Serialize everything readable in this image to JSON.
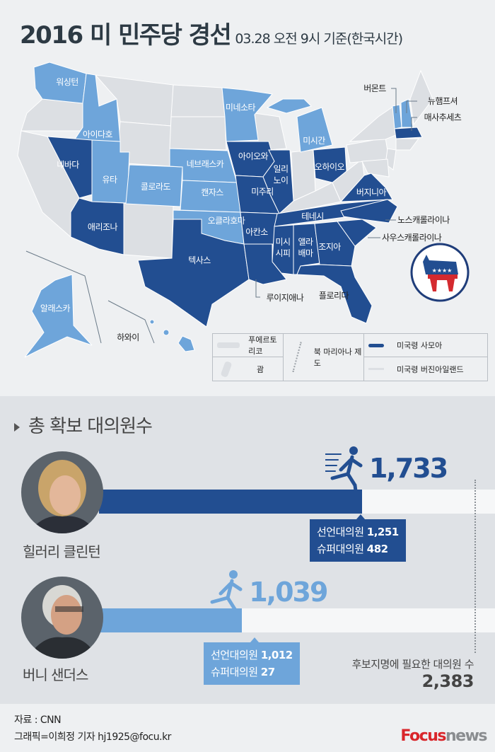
{
  "header": {
    "title": "2016 미 민주당 경선",
    "subtitle": "03.28 오전 9시 기준(한국시간)"
  },
  "colors": {
    "clinton": "#224e91",
    "sanders": "#6ea5da",
    "none": "#dcdfe3"
  },
  "map": {
    "states": [
      {
        "name": "워싱턴",
        "winner": "sanders"
      },
      {
        "name": "아이다호",
        "winner": "sanders"
      },
      {
        "name": "네바다",
        "winner": "clinton"
      },
      {
        "name": "유타",
        "winner": "sanders"
      },
      {
        "name": "애리조나",
        "winner": "clinton"
      },
      {
        "name": "콜로라도",
        "winner": "sanders"
      },
      {
        "name": "네브래스카",
        "winner": "sanders"
      },
      {
        "name": "캔자스",
        "winner": "sanders"
      },
      {
        "name": "오클라호마",
        "winner": "sanders"
      },
      {
        "name": "텍사스",
        "winner": "clinton"
      },
      {
        "name": "미네소타",
        "winner": "sanders"
      },
      {
        "name": "아이오와",
        "winner": "clinton"
      },
      {
        "name": "미주리",
        "winner": "clinton"
      },
      {
        "name": "아칸소",
        "winner": "clinton"
      },
      {
        "name": "루이지애나",
        "winner": "clinton"
      },
      {
        "name": "일리노이",
        "winner": "clinton"
      },
      {
        "name": "미시간",
        "winner": "sanders"
      },
      {
        "name": "오하이오",
        "winner": "clinton"
      },
      {
        "name": "테네시",
        "winner": "clinton"
      },
      {
        "name": "미시시피",
        "winner": "clinton"
      },
      {
        "name": "앨라배마",
        "winner": "clinton"
      },
      {
        "name": "조지아",
        "winner": "clinton"
      },
      {
        "name": "플로리다",
        "winner": "clinton"
      },
      {
        "name": "버지니아",
        "winner": "clinton"
      },
      {
        "name": "노스캐롤라이나",
        "winner": "clinton"
      },
      {
        "name": "사우스캐롤라이나",
        "winner": "clinton"
      },
      {
        "name": "버몬트",
        "winner": "sanders"
      },
      {
        "name": "뉴햄프셔",
        "winner": "sanders"
      },
      {
        "name": "매사추세츠",
        "winner": "clinton"
      },
      {
        "name": "알래스카",
        "winner": "sanders"
      },
      {
        "name": "하와이",
        "winner": "sanders"
      }
    ],
    "label_lines": {
      "illinois": [
        "일리",
        "노이"
      ],
      "mississippi": [
        "미시",
        "시피"
      ],
      "alabama": [
        "앨라",
        "배마"
      ]
    },
    "territories": [
      {
        "name": "푸에르토리코",
        "winner": "none"
      },
      {
        "name": "괌",
        "winner": "none"
      },
      {
        "name": "북 마리아나 제도",
        "winner": "none"
      },
      {
        "name": "미국령 사모아",
        "winner": "clinton"
      },
      {
        "name": "미국령 버진아일랜드",
        "winner": "none"
      }
    ],
    "logo": "democratic-donkey"
  },
  "chart_data": {
    "type": "bar",
    "title": "총 확보 대의원수",
    "categories": [
      "힐러리 클린턴",
      "버니 샌더스"
    ],
    "values": [
      1733,
      1039
    ],
    "value_labels": [
      "1,733",
      "1,039"
    ],
    "breakdown": [
      {
        "pledged_label": "선언대의원",
        "pledged": "1,251",
        "super_label": "슈퍼대의원",
        "super": "482"
      },
      {
        "pledged_label": "선언대의원",
        "pledged": "1,012",
        "super_label": "슈퍼대의원",
        "super": "27"
      }
    ],
    "threshold": {
      "label": "후보지명에 필요한 대의원 수",
      "value": 2383,
      "value_label": "2,383"
    },
    "xlim": [
      0,
      2383
    ]
  },
  "footer": {
    "source": "자료 : CNN",
    "credit": "그래픽=이희정 기자 hj1925@focu.kr",
    "logo_a": "Focus",
    "logo_b": "news"
  }
}
